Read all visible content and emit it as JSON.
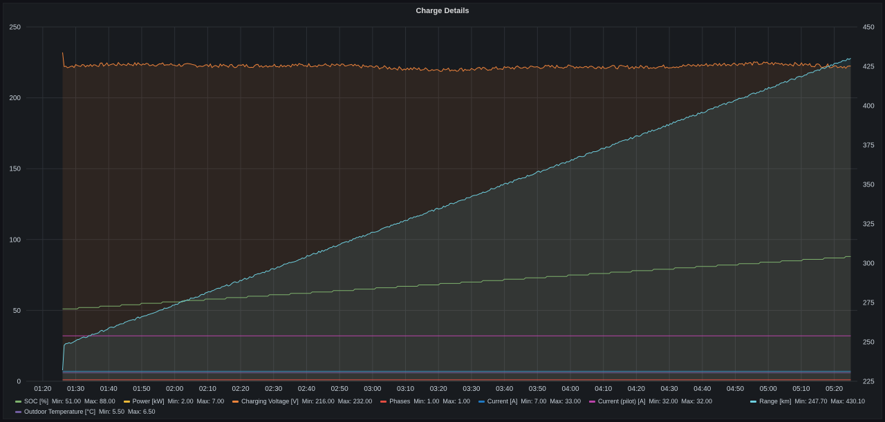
{
  "panel": {
    "title": "Charge Details"
  },
  "chart_data": {
    "type": "line",
    "title": "Charge Details",
    "x": {
      "ticks": [
        "01:20",
        "01:30",
        "01:40",
        "01:50",
        "02:00",
        "02:10",
        "02:20",
        "02:30",
        "02:40",
        "02:50",
        "03:00",
        "03:10",
        "03:20",
        "03:30",
        "03:40",
        "03:50",
        "04:00",
        "04:10",
        "04:20",
        "04:30",
        "04:40",
        "04:50",
        "05:00",
        "05:10",
        "05:20"
      ],
      "start_minutes": 75,
      "end_minutes": 327,
      "data_start_minutes": 86,
      "data_end_minutes": 325
    },
    "y_left": {
      "min": 0,
      "max": 250,
      "ticks": [
        0,
        50,
        100,
        150,
        200,
        250
      ]
    },
    "y_right": {
      "min": 225,
      "max": 450,
      "ticks": [
        225,
        250,
        275,
        300,
        325,
        350,
        375,
        400,
        425,
        450
      ]
    },
    "grid": true,
    "series": [
      {
        "name": "SOC [%]",
        "color": "#7eb26d",
        "axis": "left",
        "min": "51.00",
        "max": "88.00",
        "start": 51,
        "end": 88,
        "shape": "steps",
        "fill": false
      },
      {
        "name": "Power [kW]",
        "color": "#eab839",
        "axis": "left",
        "min": "2.00",
        "max": "7.00",
        "start": 7,
        "end": 7,
        "shape": "flat",
        "fill": false
      },
      {
        "name": "Charging Voltage [V]",
        "color": "#ef843c",
        "axis": "left",
        "min": "216.00",
        "max": "232.00",
        "start": 232,
        "level": 222,
        "end": 224,
        "shape": "noisy",
        "fill": true
      },
      {
        "name": "Phases",
        "color": "#e24d42",
        "axis": "left",
        "min": "1.00",
        "max": "1.00",
        "start": 1,
        "end": 1,
        "shape": "flat",
        "fill": false
      },
      {
        "name": "Current [A]",
        "color": "#1f78c1",
        "axis": "left",
        "min": "7.00",
        "max": "33.00",
        "start": 7,
        "end": 7,
        "shape": "flat",
        "fill": false
      },
      {
        "name": "Current (pilot) [A]",
        "color": "#ba43a9",
        "axis": "left",
        "min": "32.00",
        "max": "32.00",
        "start": 32,
        "end": 32,
        "shape": "flat",
        "fill": false
      },
      {
        "name": "Outdoor Temperature [°C]",
        "color": "#705da0",
        "axis": "left",
        "min": "5.50",
        "max": "6.50",
        "start": 6,
        "end": 6,
        "shape": "flat",
        "fill": false
      },
      {
        "name": "Range [km]",
        "color": "#6ed0e0",
        "axis": "right",
        "min": "247.70",
        "max": "430.10",
        "start": 247.7,
        "end": 430.1,
        "shape": "ramp",
        "fill": true
      }
    ]
  },
  "legend": {
    "min_label": "Min:",
    "max_label": "Max:"
  }
}
